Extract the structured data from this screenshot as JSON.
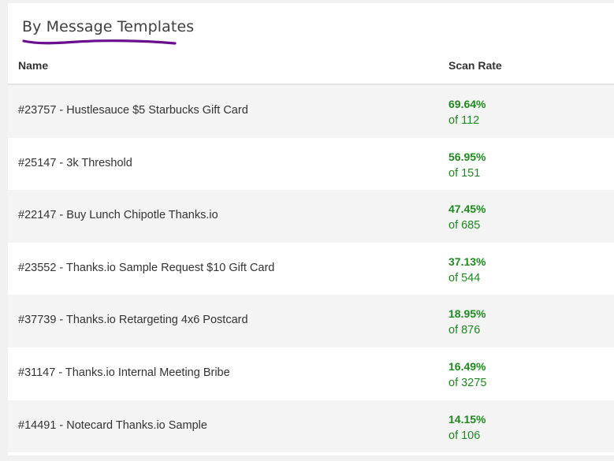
{
  "section": {
    "title": "By Message Templates",
    "underline_color": "#6a0f8e"
  },
  "table": {
    "columns": [
      "Name",
      "Scan Rate"
    ],
    "rows": [
      {
        "name": "#23757 - Hustlesauce $5 Starbucks Gift Card",
        "rate": "69.64%",
        "of": "of 112"
      },
      {
        "name": "#25147 - 3k Threshold",
        "rate": "56.95%",
        "of": "of 151"
      },
      {
        "name": "#22147 - Buy Lunch Chipotle Thanks.io",
        "rate": "47.45%",
        "of": "of 685"
      },
      {
        "name": "#23552 - Thanks.io Sample Request $10 Gift Card",
        "rate": "37.13%",
        "of": "of 544"
      },
      {
        "name": "#37739 - Thanks.io Retargeting 4x6 Postcard",
        "rate": "18.95%",
        "of": "of 876"
      },
      {
        "name": "#31147 - Thanks.io Internal Meeting Bribe",
        "rate": "16.49%",
        "of": "of 3275"
      },
      {
        "name": "#14491 - Notecard Thanks.io Sample",
        "rate": "14.15%",
        "of": "of 106"
      }
    ]
  },
  "colors": {
    "rate_green": "#1d8a1d",
    "row_stripe": "#f4f4f4",
    "background": "#f1f1f1"
  }
}
